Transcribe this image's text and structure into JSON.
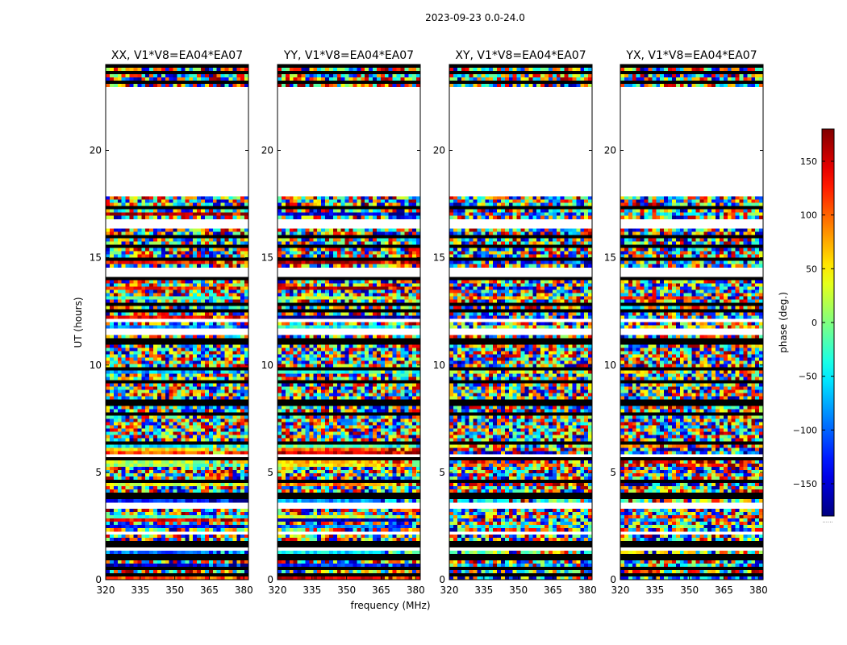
{
  "chart_data": {
    "type": "heatmap",
    "suptitle": "2023-09-23 0.0-24.0",
    "xlabel": "frequency (MHz)",
    "ylabel": "UT (hours)",
    "xlim": [
      320,
      382
    ],
    "ylim": [
      0,
      24
    ],
    "xticks": [
      320,
      335,
      350,
      365,
      380
    ],
    "yticks": [
      0,
      5,
      10,
      15,
      20
    ],
    "panels": [
      {
        "title": "XX, V1*V8=EA04*EA07",
        "pol": "XX"
      },
      {
        "title": "YY, V1*V8=EA04*EA07",
        "pol": "YY"
      },
      {
        "title": "XY, V1*V8=EA04*EA07",
        "pol": "XY"
      },
      {
        "title": "YX, V1*V8=EA04*EA07",
        "pol": "YX"
      }
    ],
    "value_range": [
      -180,
      180
    ],
    "colormap": "jet",
    "gaps_ut_hours": [
      [
        1.3,
        1.5
      ],
      [
        2.05,
        2.2
      ],
      [
        3.35,
        3.6
      ],
      [
        5.75,
        5.85
      ],
      [
        11.45,
        11.65
      ],
      [
        12.0,
        12.2
      ],
      [
        14.05,
        14.5
      ],
      [
        16.35,
        16.8
      ],
      [
        17.9,
        23.0
      ]
    ],
    "colorbar": {
      "label": "phase (deg.)",
      "ticks": [
        -150,
        -100,
        -50,
        0,
        50,
        100,
        150
      ],
      "tick_labels": [
        "−150",
        "−100",
        "−50",
        "0",
        "50",
        "100",
        "150"
      ],
      "extra_label": "......"
    }
  }
}
